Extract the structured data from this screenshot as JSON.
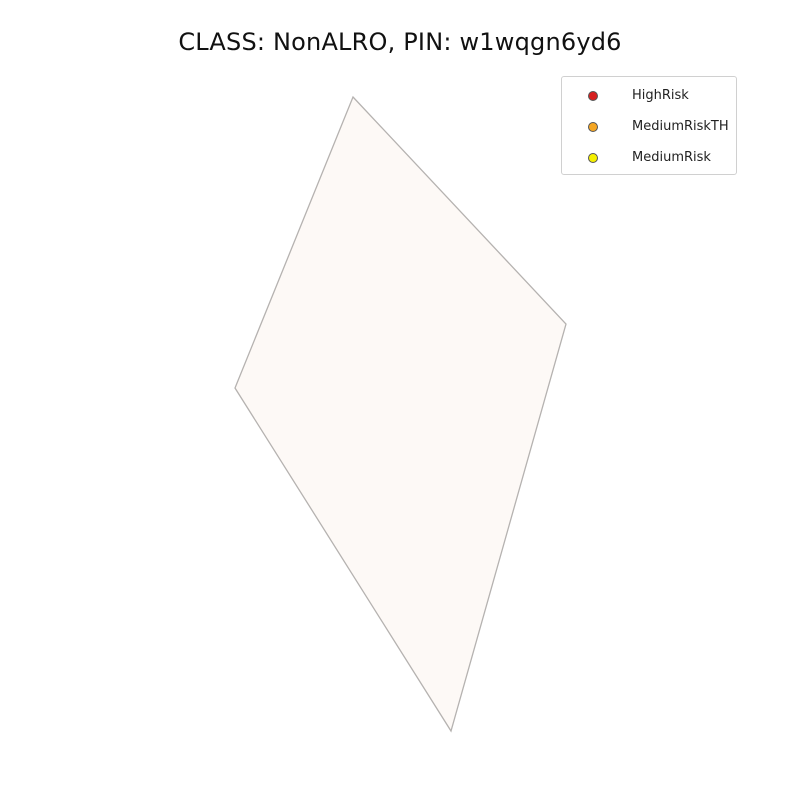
{
  "title": "CLASS: NonALRO, PIN: w1wqgn6yd6",
  "parcel": {
    "fill_color": "#fdf9f6",
    "edge_color": "#b5b2b0"
  },
  "legend": {
    "items": [
      {
        "label": "HighRisk",
        "color": "#d62020"
      },
      {
        "label": "MediumRiskTH",
        "color": "#f5a623"
      },
      {
        "label": "MediumRisk",
        "color": "#f5f000"
      }
    ]
  }
}
